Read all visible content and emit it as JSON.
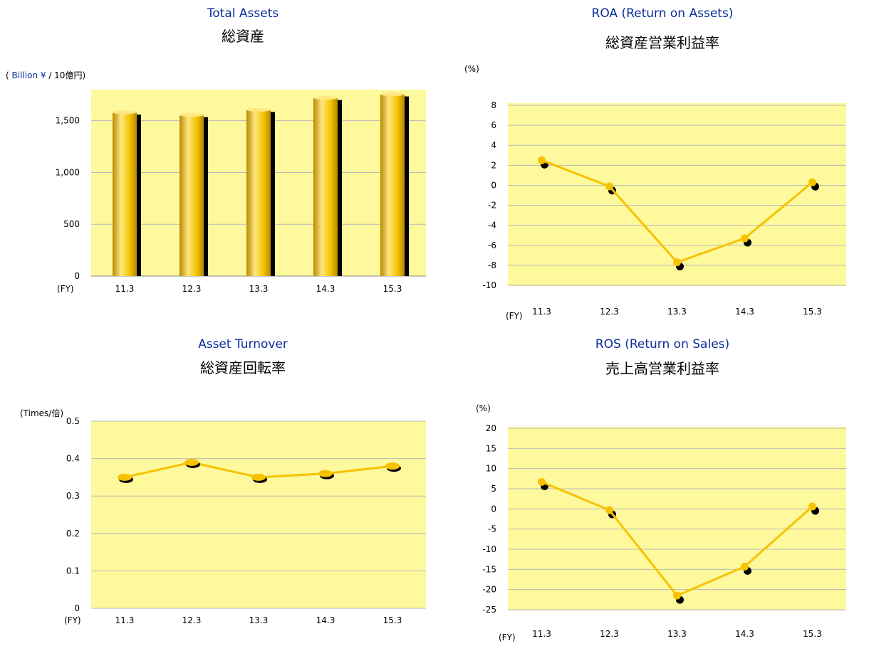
{
  "chart_data": [
    {
      "id": "total-assets",
      "type": "bar",
      "title_en": "Total Assets",
      "title_ja": "総資産",
      "unit_prefix": "(",
      "unit_en": "Billion ¥",
      "unit_suffix": "/ 10億円)",
      "x_prefix": "(FY)",
      "categories": [
        "11.3",
        "12.3",
        "13.3",
        "14.3",
        "15.3"
      ],
      "values": [
        1580,
        1555,
        1605,
        1720,
        1755
      ],
      "yticks": [
        0,
        500,
        1000,
        1500
      ],
      "ytick_labels": [
        "0",
        "500",
        "1,000",
        "1,500"
      ],
      "ylim": [
        0,
        1800
      ],
      "grid": true,
      "colors": {
        "plot": "#fdf99c",
        "bar_light": "#ffe680",
        "bar_mid": "#f5c400",
        "bar_dark": "#b88a00",
        "shadow": "#000000"
      }
    },
    {
      "id": "roa",
      "type": "line",
      "title_en": "ROA (Return on Assets)",
      "title_ja": "総資産営業利益率",
      "unit": "(%)",
      "x_prefix": "(FY)",
      "categories": [
        "11.3",
        "12.3",
        "13.3",
        "14.3",
        "15.3"
      ],
      "values": [
        2.5,
        -0.1,
        -7.7,
        -5.3,
        0.3
      ],
      "yticks": [
        -10,
        -8,
        -6,
        -4,
        -2,
        0,
        2,
        4,
        6,
        8
      ],
      "ylim": [
        -10,
        8
      ],
      "grid": true,
      "colors": {
        "plot": "#fdf99c",
        "line": "#f7c200",
        "marker": "#f7c200",
        "shadow": "#000000"
      }
    },
    {
      "id": "asset-turnover",
      "type": "line",
      "title_en": "Asset Turnover",
      "title_ja": "総資産回転率",
      "unit": "(Times/倍)",
      "x_prefix": "(FY)",
      "categories": [
        "11.3",
        "12.3",
        "13.3",
        "14.3",
        "15.3"
      ],
      "values": [
        0.35,
        0.39,
        0.35,
        0.36,
        0.38
      ],
      "yticks": [
        0,
        0.1,
        0.2,
        0.3,
        0.4,
        0.5
      ],
      "ytick_labels": [
        "0",
        "0.1",
        "0.2",
        "0.3",
        "0.4",
        "0.5"
      ],
      "ylim": [
        0,
        0.5
      ],
      "grid": true,
      "colors": {
        "plot": "#fdf99c",
        "line": "#f7c200",
        "marker": "#f7c200",
        "shadow": "#000000"
      }
    },
    {
      "id": "ros",
      "type": "line",
      "title_en": "ROS (Return on Sales)",
      "title_ja": "売上高営業利益率",
      "unit": "(%)",
      "x_prefix": "(FY)",
      "categories": [
        "11.3",
        "12.3",
        "13.3",
        "14.3",
        "15.3"
      ],
      "values": [
        6.7,
        -0.3,
        -21.5,
        -14.3,
        0.6
      ],
      "yticks": [
        -25,
        -20,
        -15,
        -10,
        -5,
        0,
        5,
        10,
        15,
        20
      ],
      "ylim": [
        -25,
        20
      ],
      "grid": true,
      "colors": {
        "plot": "#fdf99c",
        "line": "#f7c200",
        "marker": "#f7c200",
        "shadow": "#000000"
      }
    }
  ]
}
